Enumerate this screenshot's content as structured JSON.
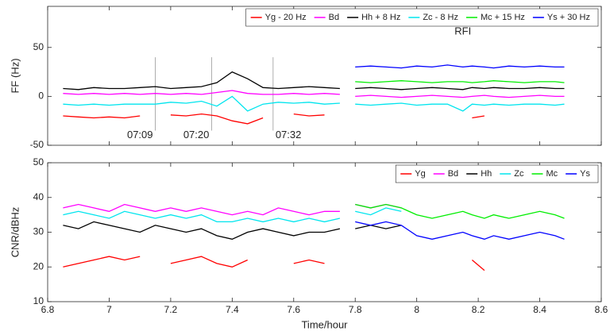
{
  "chart_data": [
    {
      "type": "line",
      "ylabel": "FF (Hz)",
      "x": [
        6.85,
        6.9,
        6.95,
        7.0,
        7.05,
        7.1,
        7.15,
        7.2,
        7.25,
        7.3,
        7.35,
        7.4,
        7.45,
        7.5,
        7.55,
        7.6,
        7.65,
        7.7,
        7.75,
        7.78,
        7.8,
        7.85,
        7.9,
        7.95,
        8.0,
        8.05,
        8.1,
        8.15,
        8.18,
        8.22,
        8.25,
        8.3,
        8.35,
        8.4,
        8.45,
        8.48
      ],
      "series": [
        {
          "name": "Yg - 20 Hz",
          "color": "#ff0000",
          "values": [
            -20,
            -21,
            -22,
            -21,
            -22,
            -20,
            null,
            -19,
            -20,
            -18,
            -20,
            -25,
            -28,
            -22,
            null,
            -18,
            -20,
            -19,
            null,
            null,
            null,
            null,
            null,
            null,
            null,
            null,
            null,
            null,
            -22,
            -20,
            null,
            null,
            null,
            null,
            null,
            null
          ]
        },
        {
          "name": "Bd",
          "color": "#ff00ff",
          "values": [
            3,
            2,
            3,
            2,
            3,
            2,
            3,
            2,
            3,
            2,
            4,
            6,
            3,
            2,
            2,
            3,
            2,
            3,
            2,
            null,
            0,
            1,
            0,
            -1,
            0,
            1,
            0,
            -1,
            0,
            1,
            0,
            -1,
            0,
            1,
            0,
            0
          ]
        },
        {
          "name": "Hh + 8 Hz",
          "color": "#000000",
          "values": [
            8,
            7,
            9,
            8,
            8,
            9,
            10,
            8,
            9,
            10,
            14,
            25,
            18,
            9,
            8,
            9,
            10,
            9,
            8,
            null,
            8,
            9,
            8,
            7,
            8,
            9,
            8,
            7,
            9,
            8,
            9,
            8,
            8,
            9,
            8,
            8
          ]
        },
        {
          "name": "Zc - 8 Hz",
          "color": "#00e5ee",
          "values": [
            -8,
            -9,
            -8,
            -9,
            -8,
            -8,
            -8,
            -6,
            -7,
            -5,
            -10,
            0,
            -15,
            -8,
            -6,
            -7,
            -6,
            -8,
            -7,
            null,
            -8,
            -9,
            -8,
            -7,
            -9,
            -8,
            -8,
            -15,
            -8,
            -9,
            -8,
            -9,
            -8,
            -8,
            -9,
            -8
          ]
        },
        {
          "name": "Mc + 15 Hz",
          "color": "#00ee00",
          "values": [
            null,
            null,
            null,
            null,
            null,
            null,
            null,
            null,
            null,
            null,
            null,
            null,
            null,
            null,
            null,
            null,
            null,
            null,
            null,
            null,
            15,
            14,
            15,
            16,
            15,
            14,
            15,
            15,
            14,
            15,
            16,
            15,
            14,
            15,
            15,
            14
          ]
        },
        {
          "name": "Ys + 30 Hz",
          "color": "#0000ff",
          "values": [
            null,
            null,
            null,
            null,
            null,
            null,
            null,
            null,
            null,
            null,
            null,
            null,
            null,
            null,
            null,
            null,
            null,
            null,
            null,
            null,
            30,
            31,
            30,
            29,
            31,
            30,
            32,
            30,
            31,
            30,
            29,
            31,
            30,
            31,
            30,
            30
          ]
        }
      ],
      "xlim": [
        6.8,
        8.6
      ],
      "xticks": [
        6.8,
        7,
        7.2,
        7.4,
        7.6,
        7.8,
        8,
        8.2,
        8.4,
        8.6
      ],
      "show_xticklabels": false,
      "ylim": [
        -50,
        92
      ],
      "yticks": [
        -50,
        0,
        50
      ],
      "markers": [
        {
          "x": 7.15,
          "label": "07:09"
        },
        {
          "x": 7.333,
          "label": "07:20"
        },
        {
          "x": 7.533,
          "label": "07:32"
        }
      ],
      "annotations": [
        {
          "text": "RFI",
          "x": 8.15,
          "y": 66
        }
      ],
      "legend": "top-right"
    },
    {
      "type": "line",
      "xlabel": "Time/hour",
      "ylabel": "CNR/dBHz",
      "x": [
        6.85,
        6.9,
        6.95,
        7.0,
        7.05,
        7.1,
        7.15,
        7.2,
        7.25,
        7.3,
        7.35,
        7.4,
        7.45,
        7.5,
        7.55,
        7.6,
        7.65,
        7.7,
        7.75,
        7.78,
        7.8,
        7.85,
        7.9,
        7.95,
        8.0,
        8.05,
        8.1,
        8.15,
        8.18,
        8.22,
        8.25,
        8.3,
        8.35,
        8.4,
        8.45,
        8.48
      ],
      "series": [
        {
          "name": "Yg",
          "color": "#ff0000",
          "values": [
            20,
            21,
            22,
            23,
            22,
            23,
            null,
            21,
            22,
            23,
            21,
            20,
            22,
            null,
            null,
            21,
            22,
            21,
            null,
            null,
            null,
            null,
            null,
            null,
            null,
            null,
            null,
            null,
            22,
            19,
            null,
            null,
            null,
            null,
            null,
            null
          ]
        },
        {
          "name": "Bd",
          "color": "#ff00ff",
          "values": [
            37,
            38,
            37,
            36,
            38,
            37,
            36,
            37,
            36,
            37,
            36,
            35,
            36,
            35,
            37,
            36,
            35,
            36,
            36,
            null,
            38,
            37,
            38,
            37,
            null,
            null,
            null,
            null,
            null,
            null,
            null,
            null,
            null,
            null,
            null,
            null
          ]
        },
        {
          "name": "Hh",
          "color": "#000000",
          "values": [
            32,
            31,
            33,
            32,
            31,
            30,
            32,
            31,
            30,
            31,
            29,
            28,
            30,
            31,
            30,
            29,
            30,
            30,
            31,
            null,
            31,
            32,
            31,
            32,
            null,
            null,
            null,
            null,
            null,
            null,
            null,
            null,
            null,
            null,
            null,
            null
          ]
        },
        {
          "name": "Zc",
          "color": "#00e5ee",
          "values": [
            35,
            36,
            35,
            34,
            36,
            35,
            34,
            35,
            34,
            35,
            33,
            33,
            34,
            33,
            34,
            33,
            34,
            33,
            34,
            null,
            36,
            35,
            37,
            36,
            null,
            null,
            null,
            null,
            null,
            null,
            null,
            null,
            null,
            null,
            null,
            null
          ]
        },
        {
          "name": "Mc",
          "color": "#00ee00",
          "values": [
            null,
            null,
            null,
            null,
            null,
            null,
            null,
            null,
            null,
            null,
            null,
            null,
            null,
            null,
            null,
            null,
            null,
            null,
            null,
            null,
            38,
            37,
            38,
            37,
            35,
            34,
            35,
            36,
            35,
            34,
            35,
            34,
            35,
            36,
            35,
            34
          ]
        },
        {
          "name": "Ys",
          "color": "#0000ff",
          "values": [
            null,
            null,
            null,
            null,
            null,
            null,
            null,
            null,
            null,
            null,
            null,
            null,
            null,
            null,
            null,
            null,
            null,
            null,
            null,
            null,
            33,
            32,
            33,
            32,
            29,
            28,
            29,
            30,
            29,
            28,
            29,
            28,
            29,
            30,
            29,
            28
          ]
        }
      ],
      "xlim": [
        6.8,
        8.6
      ],
      "xticks": [
        6.8,
        7,
        7.2,
        7.4,
        7.6,
        7.8,
        8,
        8.2,
        8.4,
        8.6
      ],
      "show_xticklabels": true,
      "ylim": [
        10,
        50
      ],
      "yticks": [
        10,
        20,
        30,
        40,
        50
      ],
      "legend": "top-right"
    }
  ]
}
